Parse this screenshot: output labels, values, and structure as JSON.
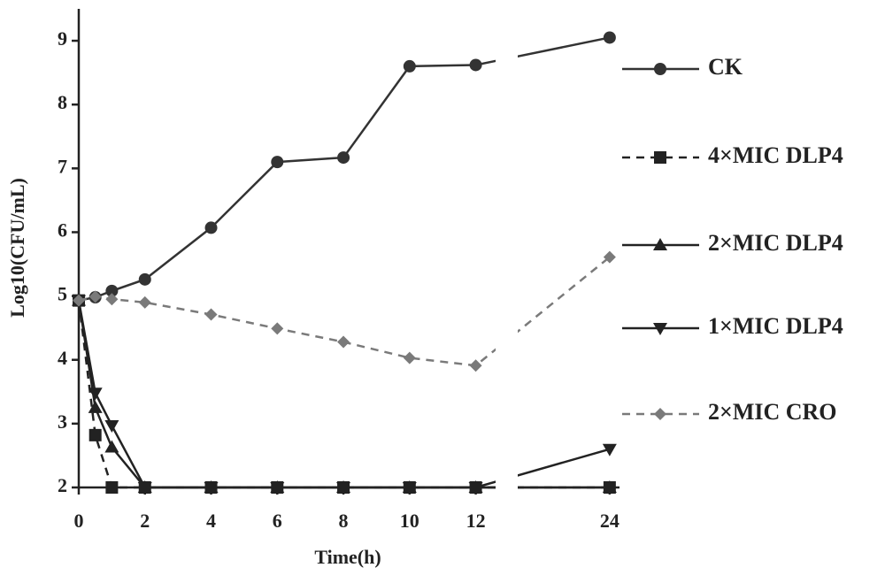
{
  "chart_data": {
    "type": "line",
    "x_label": "Time(h)",
    "y_label": "Log10(CFU/mL)",
    "x": [
      0,
      0.5,
      1,
      2,
      4,
      6,
      8,
      10,
      12,
      24
    ],
    "xlim": [
      [
        0,
        12.6
      ],
      [
        21.2,
        24.3
      ]
    ],
    "xticks": [
      0,
      2,
      4,
      6,
      8,
      10,
      12,
      24
    ],
    "ylim": [
      2,
      9.5
    ],
    "yticks": [
      2,
      3,
      4,
      5,
      6,
      7,
      8,
      9
    ],
    "series": [
      {
        "name": "CK",
        "color": "#333333",
        "marker": "circle",
        "dashed": false,
        "values": [
          4.93,
          4.98,
          5.08,
          5.26,
          6.07,
          7.1,
          7.17,
          8.6,
          8.62,
          9.05
        ]
      },
      {
        "name": "4×MIC DLP4",
        "color": "#222222",
        "marker": "square",
        "dashed": true,
        "values": [
          4.93,
          2.82,
          2.0,
          2.0,
          2.0,
          2.0,
          2.0,
          2.0,
          2.0,
          2.0
        ]
      },
      {
        "name": "2×MIC DLP4",
        "color": "#222222",
        "marker": "triangle-up",
        "dashed": false,
        "values": [
          4.93,
          3.25,
          2.63,
          2.0,
          2.0,
          2.0,
          2.0,
          2.0,
          2.0,
          2.0
        ]
      },
      {
        "name": "1×MIC DLP4",
        "color": "#222222",
        "marker": "triangle-down",
        "dashed": false,
        "values": [
          4.93,
          3.48,
          2.97,
          2.0,
          2.0,
          2.0,
          2.0,
          2.0,
          2.0,
          2.6
        ]
      },
      {
        "name": "2×MIC CRO",
        "color": "#7a7a7a",
        "marker": "diamond",
        "dashed": true,
        "values": [
          4.93,
          4.99,
          4.95,
          4.9,
          4.71,
          4.49,
          4.28,
          4.03,
          3.91,
          5.61
        ]
      }
    ]
  }
}
